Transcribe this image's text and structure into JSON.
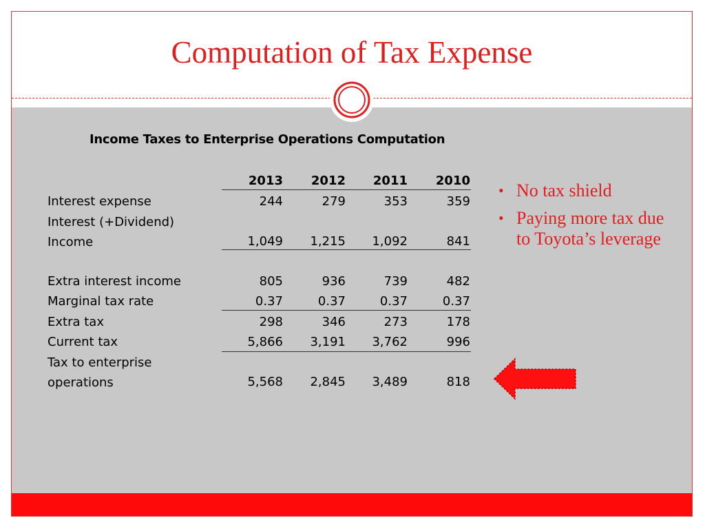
{
  "slide": {
    "title": "Computation of Tax Expense"
  },
  "table": {
    "title": "Income Taxes to Enterprise Operations Computation",
    "years": [
      "2013",
      "2012",
      "2011",
      "2010"
    ],
    "rows": [
      {
        "label": "Interest expense",
        "values": [
          "244",
          "279",
          "353",
          "359"
        ]
      },
      {
        "label": "Interest (+Dividend) Income",
        "values": [
          "1,049",
          "1,215",
          "1,092",
          "841"
        ]
      },
      {
        "label": "Extra interest income",
        "values": [
          "805",
          "936",
          "739",
          "482"
        ]
      },
      {
        "label": "Marginal tax rate",
        "values": [
          "0.37",
          "0.37",
          "0.37",
          "0.37"
        ]
      },
      {
        "label": "Extra tax",
        "values": [
          "298",
          "346",
          "273",
          "178"
        ]
      },
      {
        "label": "Current tax",
        "values": [
          "5,866",
          "3,191",
          "3,762",
          "996"
        ]
      },
      {
        "label": "Tax to enterprise operations",
        "values": [
          "5,568",
          "2,845",
          "3,489",
          "818"
        ]
      }
    ]
  },
  "bullets": [
    "No tax shield",
    "Paying more tax due to Toyota’s leverage"
  ],
  "decorations": {
    "arrow_icon": "left-arrow-icon",
    "ornament_icon": "double-circle-icon"
  },
  "colors": {
    "accent": "#e01e1e",
    "content_background": "#c8c8c8",
    "footer_bar": "#ff0a0a"
  }
}
